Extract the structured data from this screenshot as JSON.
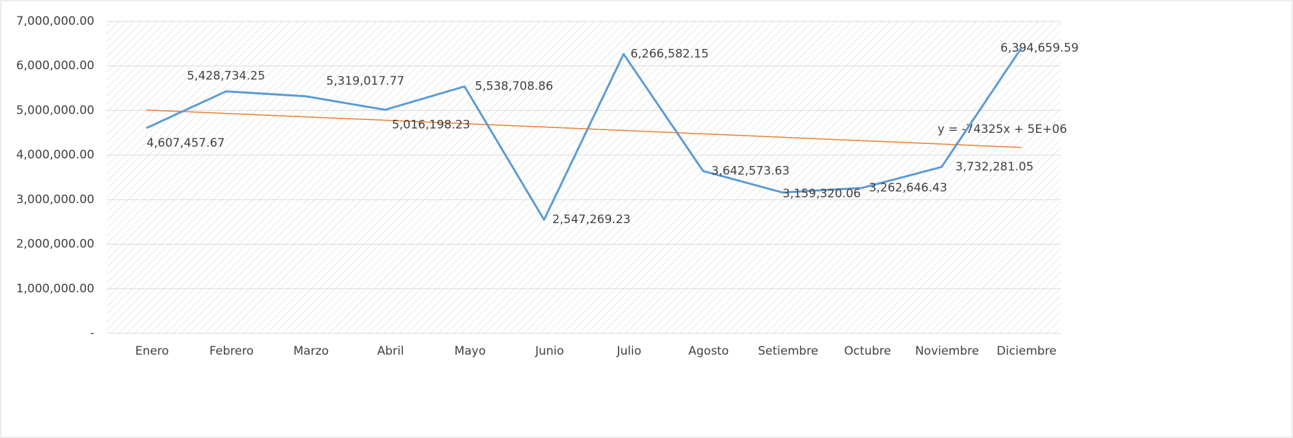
{
  "chart_data": {
    "type": "line",
    "categories": [
      "Enero",
      "Febrero",
      "Marzo",
      "Abril",
      "Mayo",
      "Junio",
      "Julio",
      "Agosto",
      "Setiembre",
      "Octubre",
      "Noviembre",
      "Diciembre"
    ],
    "series": [
      {
        "color": "#5b9bd5",
        "values": [
          4607457.67,
          5428734.25,
          5319017.77,
          5016198.23,
          5538708.86,
          2547269.23,
          6266582.15,
          3642573.63,
          3159320.06,
          3262646.43,
          3732281.05,
          6394659.59
        ],
        "value_labels": [
          "4,607,457.67",
          "5,428,734.25",
          "5,319,017.77",
          "5,016,198.23",
          "5,538,708.86",
          "2,547,269.23",
          "6,266,582.15",
          "3,642,573.63",
          "3,159,320.06",
          "3,262,646.43",
          "3,732,281.05",
          "6,394,659.59"
        ]
      }
    ],
    "trendline": {
      "label": "y = -74325x + 5E+06",
      "color": "#ed7d31",
      "values": [
        5010000,
        4170000
      ]
    },
    "ylim": [
      0,
      7000000
    ],
    "yticks": [
      {
        "value": 0,
        "label": "-"
      },
      {
        "value": 1000000,
        "label": "1,000,000.00"
      },
      {
        "value": 2000000,
        "label": "2,000,000.00"
      },
      {
        "value": 3000000,
        "label": "3,000,000.00"
      },
      {
        "value": 4000000,
        "label": "4,000,000.00"
      },
      {
        "value": 5000000,
        "label": "5,000,000.00"
      },
      {
        "value": 6000000,
        "label": "6,000,000.00"
      },
      {
        "value": 7000000,
        "label": "7,000,000.00"
      }
    ],
    "grid": true
  }
}
